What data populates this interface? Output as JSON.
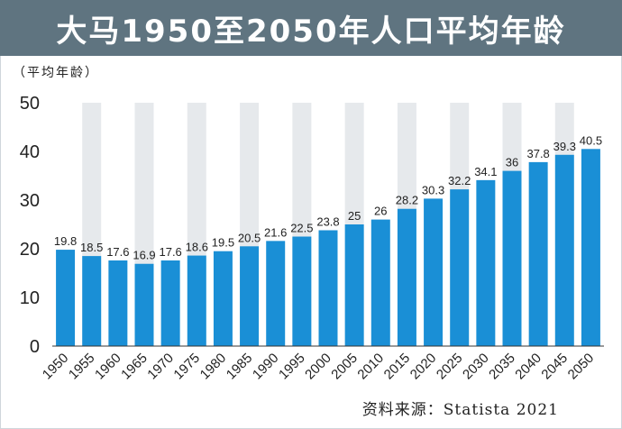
{
  "title": "大马1950至2050年人口平均年龄",
  "unit_label": "（平均年龄）",
  "source": "资料来源：Statista 2021",
  "colors": {
    "bar": "#1a8fd6",
    "header": "#5f7480",
    "band": "#e6e9ec"
  },
  "chart_data": {
    "type": "bar",
    "title": "大马1950至2050年人口平均年龄",
    "ylabel": "（平均年龄）",
    "xlabel": "",
    "ylim": [
      0,
      50
    ],
    "yticks": [
      0,
      10,
      20,
      30,
      40,
      50
    ],
    "categories": [
      "1950",
      "1955",
      "1960",
      "1965",
      "1970",
      "1975",
      "1980",
      "1985",
      "1990",
      "1995",
      "2000",
      "2005",
      "2010",
      "2015",
      "2020",
      "2025",
      "2030",
      "2035",
      "2040",
      "2045",
      "2050"
    ],
    "values": [
      19.8,
      18.5,
      17.6,
      16.9,
      17.6,
      18.6,
      19.5,
      20.5,
      21.6,
      22.5,
      23.8,
      25,
      26,
      28.2,
      30.3,
      32.2,
      34.1,
      36,
      37.8,
      39.3,
      40.5
    ],
    "value_labels": [
      "19.8",
      "18.5",
      "17.6",
      "16.9",
      "17.6",
      "18.6",
      "19.5",
      "20.5",
      "21.6",
      "22.5",
      "23.8",
      "25",
      "26",
      "28.2",
      "30.3",
      "32.2",
      "34.1",
      "36",
      "37.8",
      "39.3",
      "40.5"
    ],
    "grid": false,
    "alternating_bands": true
  }
}
